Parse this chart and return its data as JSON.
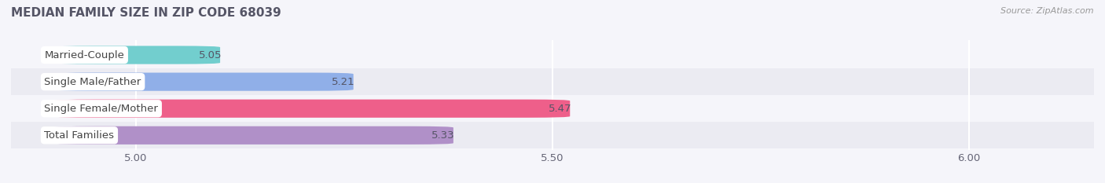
{
  "title": "MEDIAN FAMILY SIZE IN ZIP CODE 68039",
  "source": "Source: ZipAtlas.com",
  "categories": [
    "Married-Couple",
    "Single Male/Father",
    "Single Female/Mother",
    "Total Families"
  ],
  "values": [
    5.05,
    5.21,
    5.47,
    5.33
  ],
  "bar_colors": [
    "#72cece",
    "#90afe8",
    "#ee5f8a",
    "#b090c8"
  ],
  "xlim_min": 4.85,
  "xlim_max": 6.15,
  "xstart": 4.85,
  "xticks": [
    5.0,
    5.5,
    6.0
  ],
  "xtick_labels": [
    "5.00",
    "5.50",
    "6.00"
  ],
  "label_fontsize": 9.5,
  "value_fontsize": 9.5,
  "title_fontsize": 11,
  "bar_height": 0.68,
  "row_bg_even": "#f5f5fa",
  "row_bg_odd": "#ebebf2",
  "grid_color": "#ffffff",
  "title_color": "#555566",
  "source_color": "#999999",
  "value_color": "#555566",
  "label_text_color": "#444444"
}
